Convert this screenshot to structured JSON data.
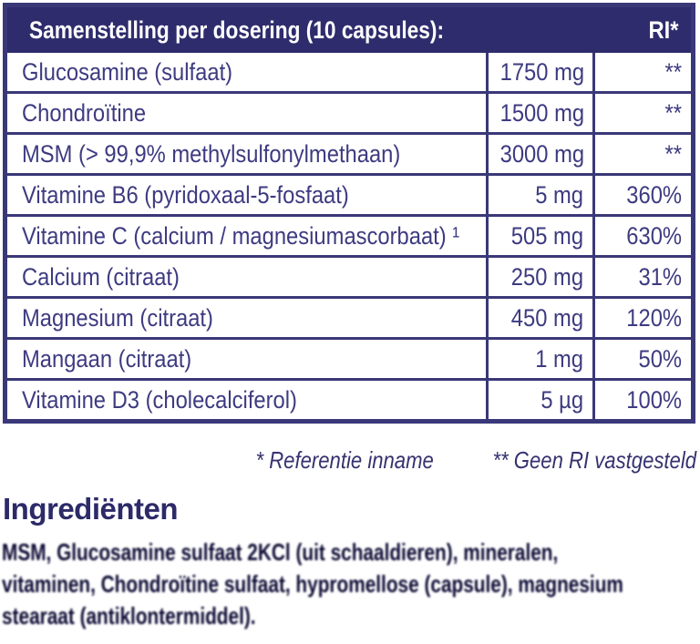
{
  "colors": {
    "header_background": "#2e2c6d",
    "table_border": "#3a3878",
    "row_text": "#3d3b80",
    "footnote_text": "#34326f",
    "heading_text": "#2c2a68",
    "paragraph_text": "#1b1a3e",
    "background": "#ffffff",
    "header_text": "#ffffff"
  },
  "table": {
    "header": {
      "title": "Samenstelling per dosering (10 capsules):",
      "ri_label": "RI*"
    },
    "rows": [
      {
        "name": "Glucosamine (sulfaat)",
        "amount": "1750 mg",
        "ri": "**"
      },
      {
        "name": "Chondroïtine",
        "amount": "1500 mg",
        "ri": "**"
      },
      {
        "name": "MSM (> 99,9% methylsulfonylmethaan)",
        "amount": "3000 mg",
        "ri": "**"
      },
      {
        "name": "Vitamine B6 (pyridoxaal-5-fosfaat)",
        "amount": "5 mg",
        "ri": "360%"
      },
      {
        "name": "Vitamine C (calcium / magnesiumascorbaat) ¹",
        "amount": "505 mg",
        "ri": "630%"
      },
      {
        "name": "Calcium (citraat)",
        "amount": "250 mg",
        "ri": "31%"
      },
      {
        "name": "Magnesium (citraat)",
        "amount": "450 mg",
        "ri": "120%"
      },
      {
        "name": "Mangaan (citraat)",
        "amount": "1 mg",
        "ri": "50%"
      },
      {
        "name": "Vitamine D3 (cholecalciferol)",
        "amount": "5 µg",
        "ri": "100%"
      }
    ]
  },
  "footnotes": {
    "reference": "* Referentie inname",
    "no_ri": "** Geen RI vastgesteld"
  },
  "ingredients": {
    "heading": "Ingrediënten",
    "lines": [
      "MSM, Glucosamine sulfaat 2KCl (uit schaaldieren), mineralen,",
      "vitaminen, Chondroïtine sulfaat, hypromellose (capsule), magnesium",
      "stearaat (antiklontermiddel)."
    ]
  }
}
